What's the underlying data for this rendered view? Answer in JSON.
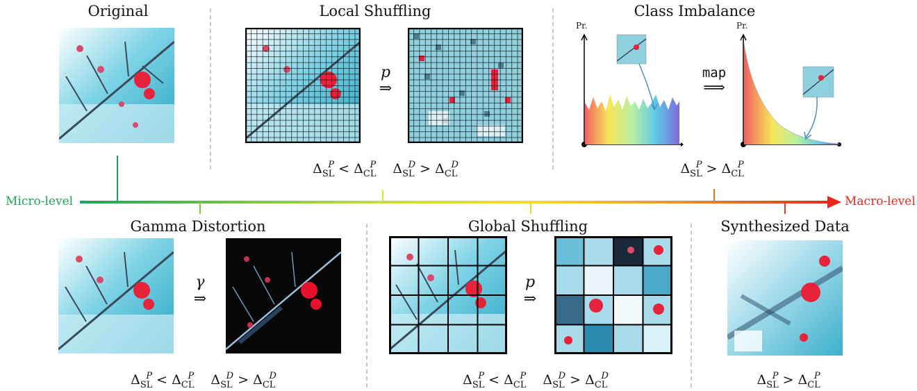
{
  "panels": {
    "original": {
      "title": "Original"
    },
    "local_shuffling": {
      "title": "Local Shuffling",
      "op": "p",
      "implies": "⇒"
    },
    "class_imbalance": {
      "title": "Class Imbalance",
      "op": "map",
      "implies": "⟹",
      "axis_label": "Pr."
    },
    "gamma_distortion": {
      "title": "Gamma Distortion",
      "op": "γ",
      "implies": "⇒"
    },
    "global_shuffling": {
      "title": "Global Shuffling",
      "op": "p",
      "implies": "⇒"
    },
    "synthesized": {
      "title": "Synthesized Data"
    }
  },
  "formulas": {
    "delta": "Δ",
    "sl": "SL",
    "cl": "CL",
    "P": "P",
    "D": "D",
    "lt": "<",
    "gt": ">"
  },
  "axis": {
    "left_label": "Micro-level",
    "right_label": "Macro-level",
    "left_color": "#1aa65a",
    "right_color": "#e8281e"
  }
}
